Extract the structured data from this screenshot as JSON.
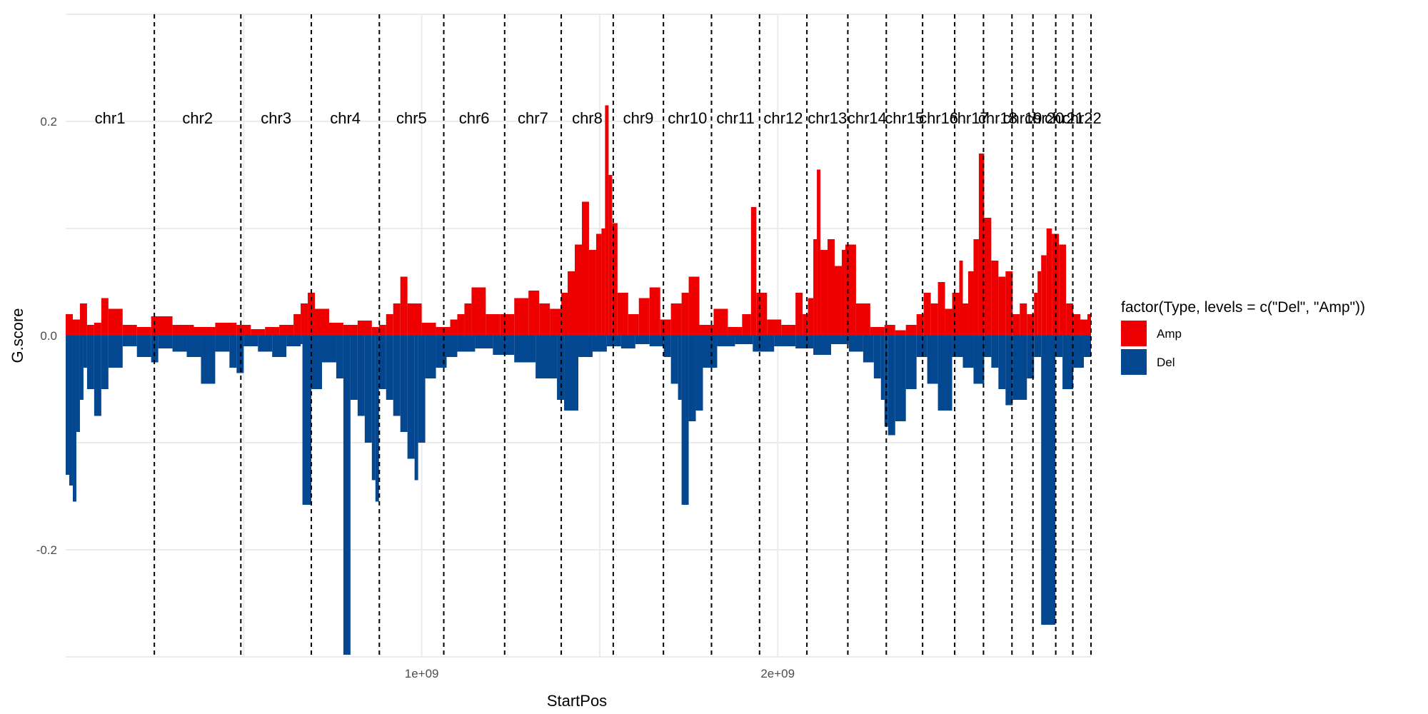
{
  "chart_data": {
    "type": "bar",
    "xlabel": "StartPos",
    "ylabel": "G.score",
    "xlim": [
      0,
      2880000000
    ],
    "ylim": [
      -0.3,
      0.3
    ],
    "x_ticks": [
      {
        "value": 1000000000,
        "label": "1e+09"
      },
      {
        "value": 2000000000,
        "label": "2e+09"
      }
    ],
    "y_ticks": [
      {
        "value": -0.2,
        "label": "-0.2"
      },
      {
        "value": 0.0,
        "label": "0.0"
      },
      {
        "value": 0.2,
        "label": "0.2"
      }
    ],
    "grid": true,
    "legend": {
      "title": "factor(Type, levels = c(\"Del\", \"Amp\"))",
      "position": "right",
      "entries": [
        {
          "name": "Amp",
          "color": "#ee0000"
        },
        {
          "name": "Del",
          "color": "#02478f"
        }
      ]
    },
    "colors": {
      "Amp": "#ee0000",
      "Del": "#02478f"
    },
    "chromosome_boundaries": [
      0,
      249000000,
      492000000,
      690000000,
      881000000,
      1062000000,
      1233000000,
      1392000000,
      1538000000,
      1679000000,
      1814000000,
      1949000000,
      2082000000,
      2197000000,
      2305000000,
      2407000000,
      2497000000,
      2578000000,
      2658000000,
      2717000000,
      2781000000,
      2829000000,
      2880000000
    ],
    "chromosome_labels": [
      "chr1",
      "chr2",
      "chr3",
      "chr4",
      "chr5",
      "chr6",
      "chr7",
      "chr8",
      "chr9",
      "chr10",
      "chr11",
      "chr12",
      "chr13",
      "chr14",
      "chr15",
      "chr16",
      "chr17",
      "chr18",
      "chr19",
      "chr20",
      "chr21",
      "chr22"
    ],
    "chromosome_label_y": 0.198,
    "series": [
      {
        "name": "Amp",
        "x": [
          0,
          20000000,
          40000000,
          60000000,
          80000000,
          100000000,
          120000000,
          160000000,
          200000000,
          240000000,
          300000000,
          360000000,
          420000000,
          480000000,
          520000000,
          560000000,
          600000000,
          640000000,
          660000000,
          680000000,
          700000000,
          740000000,
          780000000,
          820000000,
          860000000,
          880000000,
          900000000,
          920000000,
          940000000,
          960000000,
          1000000000,
          1040000000,
          1080000000,
          1100000000,
          1120000000,
          1140000000,
          1180000000,
          1220000000,
          1260000000,
          1300000000,
          1330000000,
          1360000000,
          1392000000,
          1410000000,
          1430000000,
          1450000000,
          1470000000,
          1490000000,
          1505000000,
          1515000000,
          1525000000,
          1535000000,
          1550000000,
          1580000000,
          1610000000,
          1640000000,
          1670000000,
          1700000000,
          1730000000,
          1750000000,
          1780000000,
          1820000000,
          1860000000,
          1900000000,
          1925000000,
          1940000000,
          1970000000,
          2010000000,
          2050000000,
          2070000000,
          2085000000,
          2100000000,
          2110000000,
          2120000000,
          2140000000,
          2160000000,
          2180000000,
          2190000000,
          2220000000,
          2260000000,
          2300000000,
          2330000000,
          2360000000,
          2390000000,
          2410000000,
          2430000000,
          2450000000,
          2470000000,
          2490000000,
          2510000000,
          2520000000,
          2535000000,
          2550000000,
          2565000000,
          2580000000,
          2600000000,
          2620000000,
          2640000000,
          2660000000,
          2680000000,
          2700000000,
          2720000000,
          2730000000,
          2740000000,
          2755000000,
          2770000000,
          2790000000,
          2810000000,
          2830000000,
          2850000000,
          2870000000
        ],
        "values": [
          0.02,
          0.015,
          0.03,
          0.01,
          0.012,
          0.035,
          0.025,
          0.01,
          0.008,
          0.018,
          0.01,
          0.008,
          0.012,
          0.01,
          0.006,
          0.008,
          0.01,
          0.02,
          0.03,
          0.04,
          0.025,
          0.012,
          0.01,
          0.014,
          0.008,
          0.01,
          0.02,
          0.03,
          0.055,
          0.03,
          0.012,
          0.008,
          0.015,
          0.02,
          0.03,
          0.045,
          0.02,
          0.02,
          0.035,
          0.042,
          0.03,
          0.025,
          0.04,
          0.06,
          0.085,
          0.125,
          0.08,
          0.095,
          0.1,
          0.215,
          0.15,
          0.105,
          0.04,
          0.02,
          0.035,
          0.045,
          0.015,
          0.03,
          0.04,
          0.055,
          0.01,
          0.025,
          0.008,
          0.02,
          0.12,
          0.04,
          0.015,
          0.01,
          0.04,
          0.02,
          0.035,
          0.09,
          0.155,
          0.08,
          0.09,
          0.065,
          0.08,
          0.085,
          0.03,
          0.008,
          0.01,
          0.005,
          0.01,
          0.02,
          0.04,
          0.03,
          0.05,
          0.025,
          0.04,
          0.07,
          0.03,
          0.06,
          0.09,
          0.17,
          0.11,
          0.07,
          0.055,
          0.06,
          0.02,
          0.03,
          0.02,
          0.04,
          0.06,
          0.075,
          0.1,
          0.095,
          0.085,
          0.03,
          0.02,
          0.015,
          0.02
        ]
      },
      {
        "name": "Del",
        "x": [
          0,
          10000000,
          20000000,
          30000000,
          40000000,
          50000000,
          60000000,
          80000000,
          100000000,
          120000000,
          160000000,
          200000000,
          240000000,
          260000000,
          300000000,
          340000000,
          380000000,
          420000000,
          460000000,
          480000000,
          500000000,
          540000000,
          580000000,
          620000000,
          660000000,
          665000000,
          690000000,
          720000000,
          760000000,
          780000000,
          800000000,
          820000000,
          840000000,
          860000000,
          870000000,
          880000000,
          900000000,
          920000000,
          940000000,
          960000000,
          980000000,
          990000000,
          1010000000,
          1040000000,
          1070000000,
          1100000000,
          1150000000,
          1200000000,
          1260000000,
          1320000000,
          1380000000,
          1400000000,
          1440000000,
          1480000000,
          1520000000,
          1560000000,
          1600000000,
          1640000000,
          1680000000,
          1700000000,
          1720000000,
          1730000000,
          1750000000,
          1770000000,
          1790000000,
          1830000000,
          1880000000,
          1930000000,
          1990000000,
          2050000000,
          2100000000,
          2150000000,
          2200000000,
          2240000000,
          2270000000,
          2290000000,
          2300000000,
          2310000000,
          2330000000,
          2360000000,
          2390000000,
          2420000000,
          2450000000,
          2490000000,
          2520000000,
          2550000000,
          2580000000,
          2600000000,
          2620000000,
          2640000000,
          2660000000,
          2700000000,
          2720000000,
          2740000000,
          2780000000,
          2800000000,
          2830000000,
          2860000000
        ],
        "values": [
          -0.13,
          -0.14,
          -0.155,
          -0.09,
          -0.06,
          -0.03,
          -0.05,
          -0.075,
          -0.05,
          -0.03,
          -0.01,
          -0.02,
          -0.025,
          -0.012,
          -0.015,
          -0.02,
          -0.045,
          -0.015,
          -0.03,
          -0.035,
          -0.01,
          -0.015,
          -0.02,
          -0.01,
          -0.008,
          -0.158,
          -0.05,
          -0.025,
          -0.04,
          -0.298,
          -0.06,
          -0.075,
          -0.1,
          -0.135,
          -0.155,
          -0.05,
          -0.06,
          -0.075,
          -0.09,
          -0.115,
          -0.135,
          -0.1,
          -0.04,
          -0.03,
          -0.02,
          -0.015,
          -0.012,
          -0.018,
          -0.025,
          -0.04,
          -0.06,
          -0.07,
          -0.02,
          -0.015,
          -0.01,
          -0.012,
          -0.008,
          -0.01,
          -0.02,
          -0.045,
          -0.06,
          -0.158,
          -0.08,
          -0.07,
          -0.03,
          -0.01,
          -0.008,
          -0.015,
          -0.01,
          -0.012,
          -0.018,
          -0.008,
          -0.015,
          -0.025,
          -0.04,
          -0.06,
          -0.085,
          -0.093,
          -0.08,
          -0.05,
          -0.02,
          -0.045,
          -0.07,
          -0.02,
          -0.03,
          -0.045,
          -0.02,
          -0.03,
          -0.05,
          -0.065,
          -0.06,
          -0.04,
          -0.02,
          -0.27,
          -0.02,
          -0.05,
          -0.03,
          -0.02
        ]
      }
    ]
  }
}
